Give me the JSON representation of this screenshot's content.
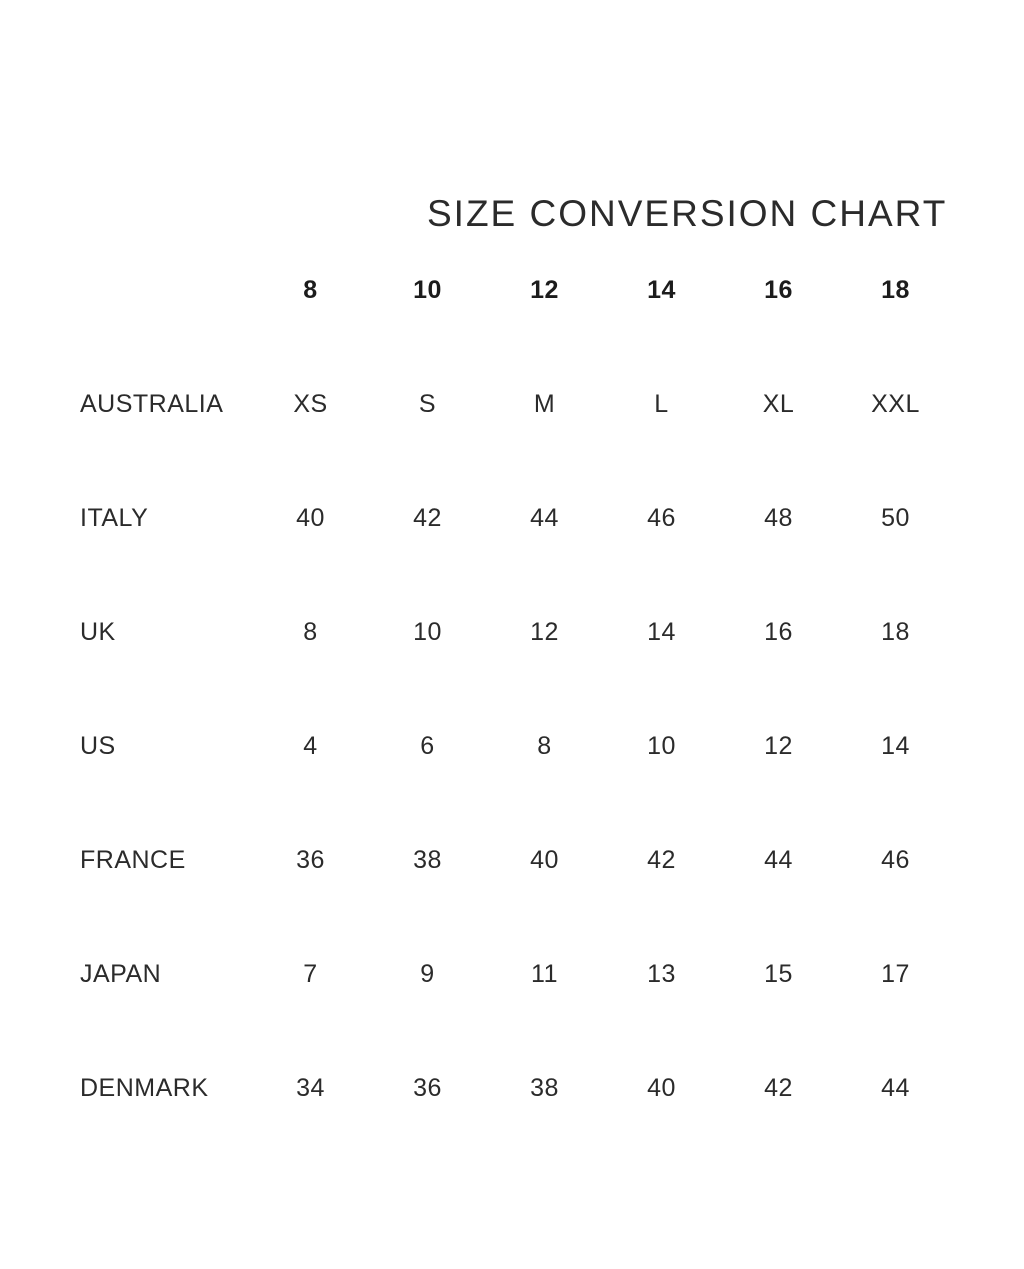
{
  "page": {
    "title": "SIZE CONVERSION CHART",
    "background_color": "#ffffff",
    "text_color": "#2b2b2b"
  },
  "table": {
    "header": [
      "8",
      "10",
      "12",
      "14",
      "16",
      "18"
    ],
    "rows": [
      {
        "label": "AUSTRALIA",
        "values": [
          "XS",
          "S",
          "M",
          "L",
          "XL",
          "XXL"
        ]
      },
      {
        "label": "ITALY",
        "values": [
          "40",
          "42",
          "44",
          "46",
          "48",
          "50"
        ]
      },
      {
        "label": "UK",
        "values": [
          "8",
          "10",
          "12",
          "14",
          "16",
          "18"
        ]
      },
      {
        "label": "US",
        "values": [
          "4",
          "6",
          "8",
          "10",
          "12",
          "14"
        ]
      },
      {
        "label": "FRANCE",
        "values": [
          "36",
          "38",
          "40",
          "42",
          "44",
          "46"
        ]
      },
      {
        "label": "JAPAN",
        "values": [
          "7",
          "9",
          "11",
          "13",
          "15",
          "17"
        ]
      },
      {
        "label": "DENMARK",
        "values": [
          "34",
          "36",
          "38",
          "40",
          "42",
          "44"
        ]
      }
    ]
  }
}
